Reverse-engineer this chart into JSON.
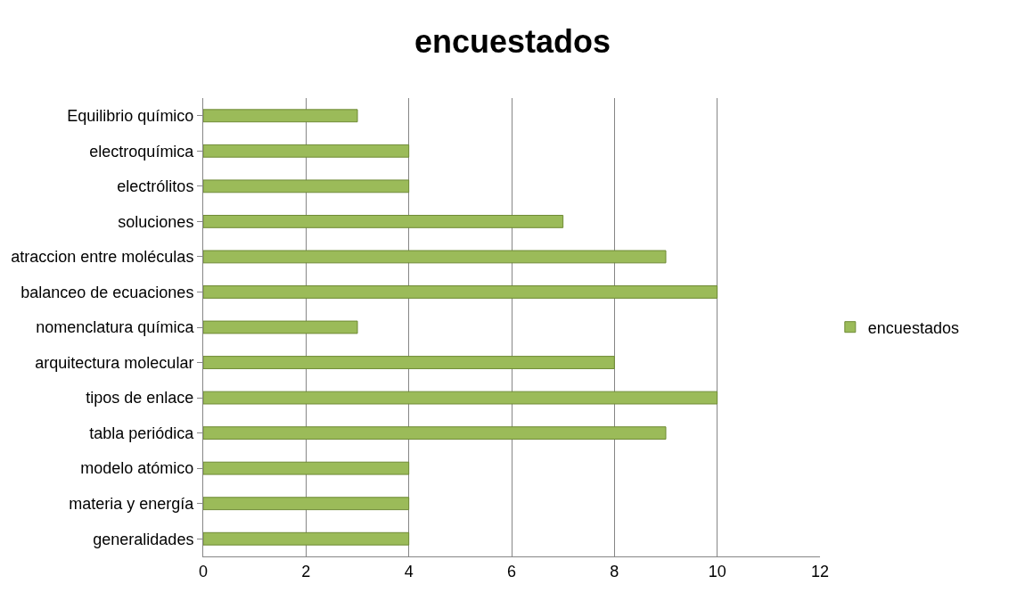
{
  "chart_data": {
    "type": "bar",
    "orientation": "horizontal",
    "title": "encuestados",
    "categories": [
      "Equilibrio químico",
      "electroquímica",
      "electrólitos",
      "soluciones",
      "atraccion entre moléculas",
      "balanceo de ecuaciones",
      "nomenclatura química",
      "arquitectura molecular",
      "tipos de enlace",
      "tabla periódica",
      "modelo atómico",
      "materia y energía",
      "generalidades"
    ],
    "series": [
      {
        "name": "encuestados",
        "color": "#9bbb59",
        "values": [
          3,
          4,
          4,
          7,
          9,
          10,
          3,
          8,
          10,
          9,
          4,
          4,
          4
        ]
      }
    ],
    "xlim": [
      0,
      12
    ],
    "xticks": [
      0,
      2,
      4,
      6,
      8,
      10,
      12
    ],
    "grid": "x",
    "legend": "right"
  }
}
